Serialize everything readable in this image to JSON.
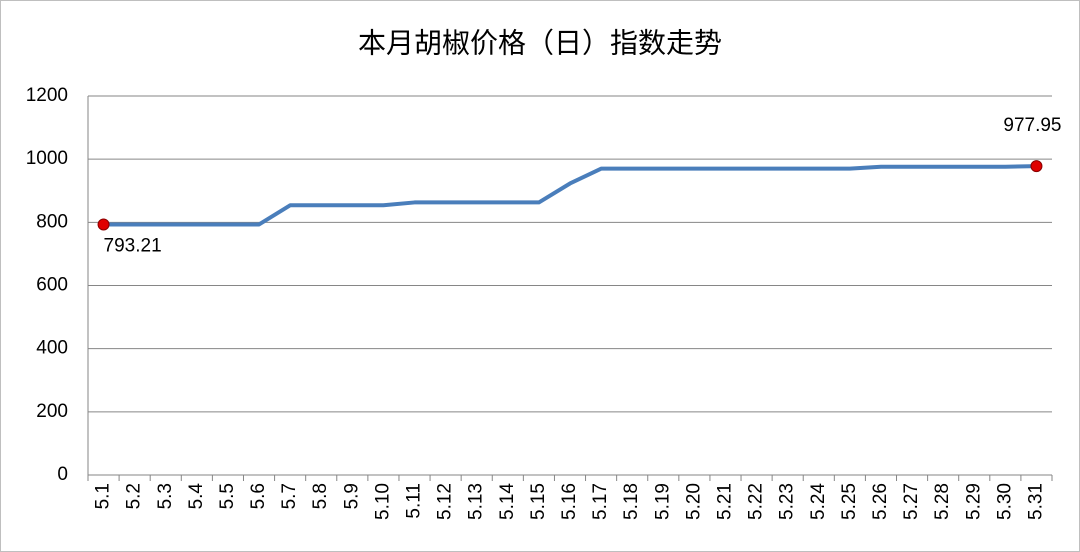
{
  "chart_data": {
    "type": "line",
    "title": "本月胡椒价格（日）指数走势",
    "categories": [
      "5.1",
      "5.2",
      "5.3",
      "5.4",
      "5.5",
      "5.6",
      "5.7",
      "5.8",
      "5.9",
      "5.10",
      "5.11",
      "5.12",
      "5.13",
      "5.14",
      "5.15",
      "5.16",
      "5.17",
      "5.18",
      "5.19",
      "5.20",
      "5.21",
      "5.22",
      "5.23",
      "5.24",
      "5.25",
      "5.26",
      "5.27",
      "5.28",
      "5.29",
      "5.30",
      "5.31"
    ],
    "series": [
      {
        "color": "#4a7ebb",
        "marker_color": "#e00000",
        "values": [
          793.21,
          793.21,
          793.21,
          793.21,
          793.21,
          793.21,
          854,
          854,
          854,
          854,
          863,
          863,
          863,
          863,
          863,
          923,
          970,
          970,
          970,
          970,
          970,
          970,
          970,
          970,
          970,
          976,
          976,
          976,
          976,
          976,
          977.95
        ]
      }
    ],
    "ylim": [
      0,
      1200
    ],
    "yticks": [
      0,
      200,
      400,
      600,
      800,
      1000,
      1200
    ],
    "grid": true
  }
}
